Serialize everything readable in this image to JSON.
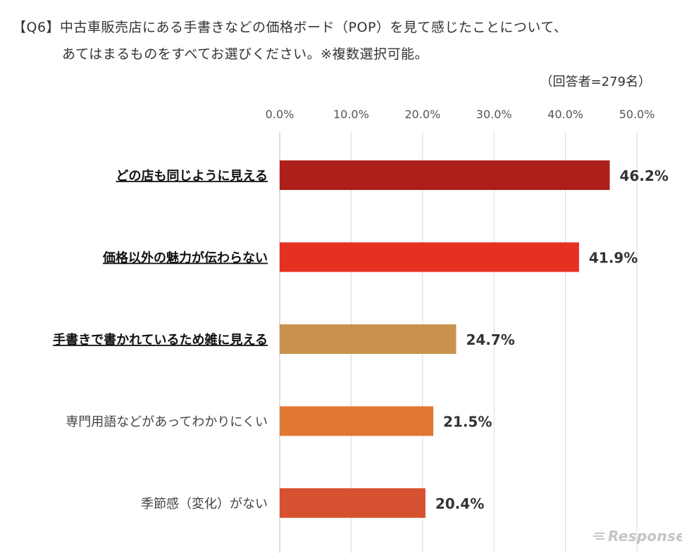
{
  "title": {
    "line1": "【Q6】中古車販売店にある手書きなどの価格ボード（POP）を見て感じたことについて、",
    "line2": "あてはまるものをすべてお選びください。※複数選択可能。"
  },
  "respondents_note": "（回答者=279名）",
  "watermark": "Response.",
  "chart_data": {
    "type": "bar",
    "orientation": "horizontal",
    "categories": [
      "どの店も同じように見える",
      "価格以外の魅力が伝わらない",
      "手書きで書かれているため雑に見える",
      "専門用語などがあってわかりにくい",
      "季節感（変化）がない"
    ],
    "values": [
      46.2,
      41.9,
      24.7,
      21.5,
      20.4
    ],
    "value_labels": [
      "46.2%",
      "41.9%",
      "24.7%",
      "21.5%",
      "20.4%"
    ],
    "category_emphasis": [
      true,
      true,
      true,
      false,
      false
    ],
    "colors": [
      "#ad1f1a",
      "#e63022",
      "#c8924e",
      "#e07732",
      "#d6512f"
    ],
    "x_ticks": [
      "0.0%",
      "10.0%",
      "20.0%",
      "30.0%",
      "40.0%",
      "50.0%"
    ],
    "xlim": [
      0,
      50
    ],
    "grid": true
  }
}
